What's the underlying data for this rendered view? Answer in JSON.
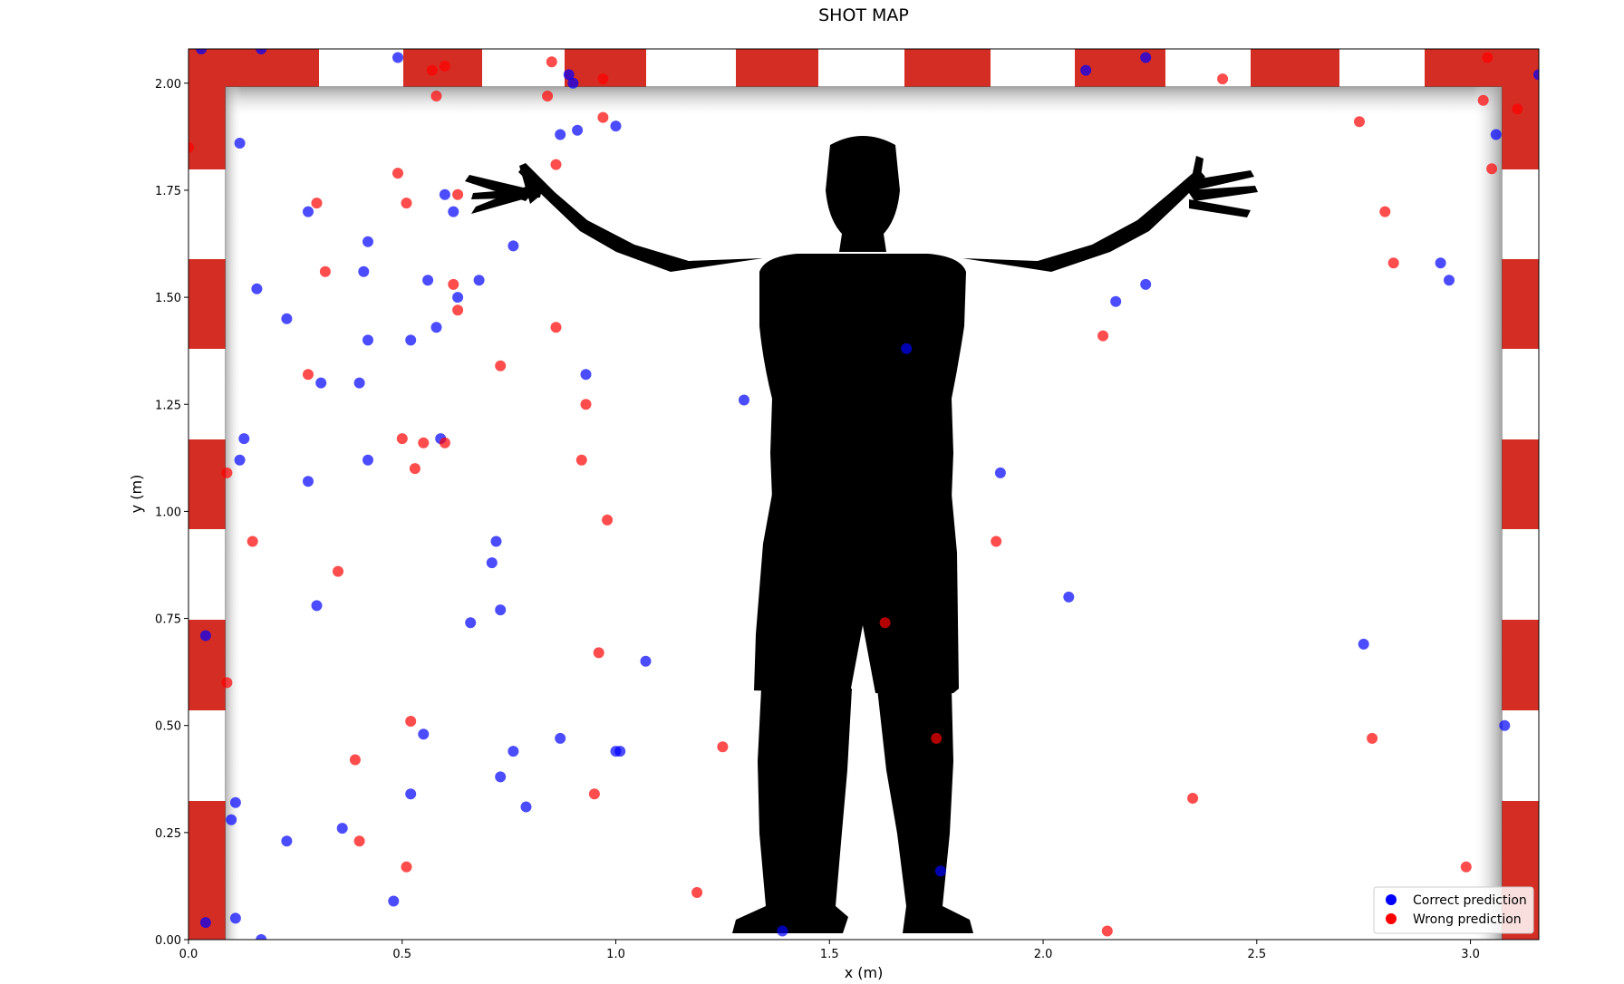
{
  "chart_data": {
    "type": "scatter",
    "title": "SHOT MAP",
    "xlabel": "x (m)",
    "ylabel": "y (m)",
    "xlim": [
      0,
      3.16
    ],
    "ylim": [
      0,
      2.08
    ],
    "xticks": [
      "0.0",
      "0.5",
      "1.0",
      "1.5",
      "2.0",
      "2.5",
      "3.0"
    ],
    "yticks": [
      "0.00",
      "0.25",
      "0.50",
      "0.75",
      "1.00",
      "1.25",
      "1.50",
      "1.75",
      "2.00"
    ],
    "grid": false,
    "legend_position": "bottom-right",
    "background": "handball goal with goalkeeper silhouette",
    "series": [
      {
        "name": "Correct prediction",
        "color": "#0000ff",
        "points": [
          [
            0.03,
            2.08
          ],
          [
            0.17,
            2.08
          ],
          [
            0.49,
            2.06
          ],
          [
            0.89,
            2.02
          ],
          [
            0.9,
            2.0
          ],
          [
            0.91,
            1.89
          ],
          [
            0.87,
            1.88
          ],
          [
            1.0,
            1.9
          ],
          [
            0.12,
            1.86
          ],
          [
            0.6,
            1.74
          ],
          [
            0.62,
            1.7
          ],
          [
            0.28,
            1.7
          ],
          [
            0.76,
            1.62
          ],
          [
            0.42,
            1.63
          ],
          [
            0.41,
            1.56
          ],
          [
            0.16,
            1.52
          ],
          [
            0.56,
            1.54
          ],
          [
            0.68,
            1.54
          ],
          [
            0.63,
            1.5
          ],
          [
            0.23,
            1.45
          ],
          [
            0.58,
            1.43
          ],
          [
            0.42,
            1.4
          ],
          [
            0.52,
            1.4
          ],
          [
            0.31,
            1.3
          ],
          [
            0.4,
            1.3
          ],
          [
            0.93,
            1.32
          ],
          [
            1.3,
            1.26
          ],
          [
            0.13,
            1.17
          ],
          [
            0.12,
            1.12
          ],
          [
            0.42,
            1.12
          ],
          [
            0.59,
            1.17
          ],
          [
            0.28,
            1.07
          ],
          [
            0.72,
            0.93
          ],
          [
            0.71,
            0.88
          ],
          [
            0.3,
            0.78
          ],
          [
            0.73,
            0.77
          ],
          [
            0.66,
            0.74
          ],
          [
            1.07,
            0.65
          ],
          [
            0.04,
            0.71
          ],
          [
            0.55,
            0.48
          ],
          [
            0.76,
            0.44
          ],
          [
            0.87,
            0.47
          ],
          [
            1.0,
            0.44
          ],
          [
            1.01,
            0.44
          ],
          [
            0.73,
            0.38
          ],
          [
            0.52,
            0.34
          ],
          [
            0.79,
            0.31
          ],
          [
            0.11,
            0.32
          ],
          [
            0.1,
            0.28
          ],
          [
            0.23,
            0.23
          ],
          [
            0.36,
            0.26
          ],
          [
            0.48,
            0.09
          ],
          [
            0.11,
            0.05
          ],
          [
            0.04,
            0.04
          ],
          [
            0.17,
            0.0
          ],
          [
            1.39,
            0.02
          ],
          [
            1.68,
            1.38
          ],
          [
            1.76,
            0.16
          ],
          [
            1.9,
            1.09
          ],
          [
            2.06,
            0.8
          ],
          [
            2.1,
            2.03
          ],
          [
            2.24,
            2.06
          ],
          [
            2.17,
            1.49
          ],
          [
            2.24,
            1.53
          ],
          [
            2.75,
            0.69
          ],
          [
            2.93,
            1.58
          ],
          [
            2.95,
            1.54
          ],
          [
            3.06,
            1.88
          ],
          [
            3.08,
            0.5
          ],
          [
            3.16,
            2.02
          ]
        ]
      },
      {
        "name": "Wrong prediction",
        "color": "#ff0000",
        "points": [
          [
            0.0,
            1.85
          ],
          [
            0.57,
            2.03
          ],
          [
            0.6,
            2.04
          ],
          [
            0.85,
            2.05
          ],
          [
            0.97,
            2.01
          ],
          [
            0.58,
            1.97
          ],
          [
            0.84,
            1.97
          ],
          [
            0.97,
            1.92
          ],
          [
            0.86,
            1.81
          ],
          [
            0.49,
            1.79
          ],
          [
            0.3,
            1.72
          ],
          [
            0.51,
            1.72
          ],
          [
            0.63,
            1.74
          ],
          [
            0.32,
            1.56
          ],
          [
            0.62,
            1.53
          ],
          [
            0.63,
            1.47
          ],
          [
            0.86,
            1.43
          ],
          [
            0.73,
            1.34
          ],
          [
            0.28,
            1.32
          ],
          [
            0.93,
            1.25
          ],
          [
            0.5,
            1.17
          ],
          [
            0.55,
            1.16
          ],
          [
            0.6,
            1.16
          ],
          [
            0.92,
            1.12
          ],
          [
            0.53,
            1.1
          ],
          [
            0.09,
            1.09
          ],
          [
            0.98,
            0.98
          ],
          [
            0.15,
            0.93
          ],
          [
            0.35,
            0.86
          ],
          [
            0.09,
            0.6
          ],
          [
            0.96,
            0.67
          ],
          [
            0.52,
            0.51
          ],
          [
            0.39,
            0.42
          ],
          [
            1.25,
            0.45
          ],
          [
            0.95,
            0.34
          ],
          [
            0.4,
            0.23
          ],
          [
            0.51,
            0.17
          ],
          [
            1.19,
            0.11
          ],
          [
            1.63,
            0.74
          ],
          [
            1.75,
            0.47
          ],
          [
            1.89,
            0.93
          ],
          [
            2.15,
            0.02
          ],
          [
            2.14,
            1.41
          ],
          [
            2.35,
            0.33
          ],
          [
            2.42,
            2.01
          ],
          [
            2.74,
            1.91
          ],
          [
            2.77,
            0.47
          ],
          [
            2.8,
            1.7
          ],
          [
            2.82,
            1.58
          ],
          [
            2.99,
            0.17
          ],
          [
            3.03,
            1.96
          ],
          [
            3.04,
            2.06
          ],
          [
            3.05,
            1.8
          ],
          [
            3.11,
            1.94
          ]
        ]
      }
    ]
  }
}
